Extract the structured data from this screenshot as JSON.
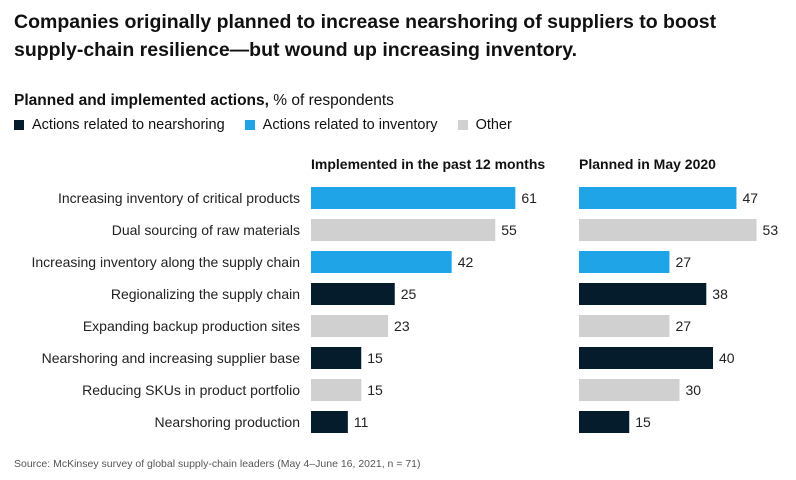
{
  "title": "Companies originally planned to increase nearshoring of suppliers to boost supply-chain resilience—but wound up increasing inventory.",
  "subtitle": {
    "bold": "Planned and implemented actions,",
    "rest": " % of respondents"
  },
  "legend": [
    {
      "label": "Actions related to nearshoring",
      "color": "#051c2c"
    },
    {
      "label": "Actions related to inventory",
      "color": "#1fa4e8"
    },
    {
      "label": "Other",
      "color": "#d0d0d0"
    }
  ],
  "source": "Source: McKinsey survey of global supply-chain leaders (May 4–June 16, 2021, n = 71)",
  "chart_data": {
    "type": "bar",
    "orientation": "horizontal",
    "categories": [
      "Increasing inventory of critical products",
      "Dual sourcing of raw materials",
      "Increasing inventory along the supply chain",
      "Regionalizing the supply chain",
      "Expanding backup production sites",
      "Nearshoring and increasing supplier base",
      "Reducing SKUs in product portfolio",
      "Nearshoring production"
    ],
    "category_group": [
      "inventory",
      "other",
      "inventory",
      "nearshoring",
      "other",
      "nearshoring",
      "other",
      "nearshoring"
    ],
    "group_colors": {
      "nearshoring": "#051c2c",
      "inventory": "#1fa4e8",
      "other": "#d0d0d0"
    },
    "series": [
      {
        "name": "Implemented in the past 12 months",
        "values": [
          61,
          55,
          42,
          25,
          23,
          15,
          15,
          11
        ]
      },
      {
        "name": "Planned in May 2020",
        "values": [
          47,
          53,
          27,
          38,
          27,
          40,
          30,
          15
        ]
      }
    ],
    "xlim": [
      0,
      100
    ],
    "grid": false
  }
}
